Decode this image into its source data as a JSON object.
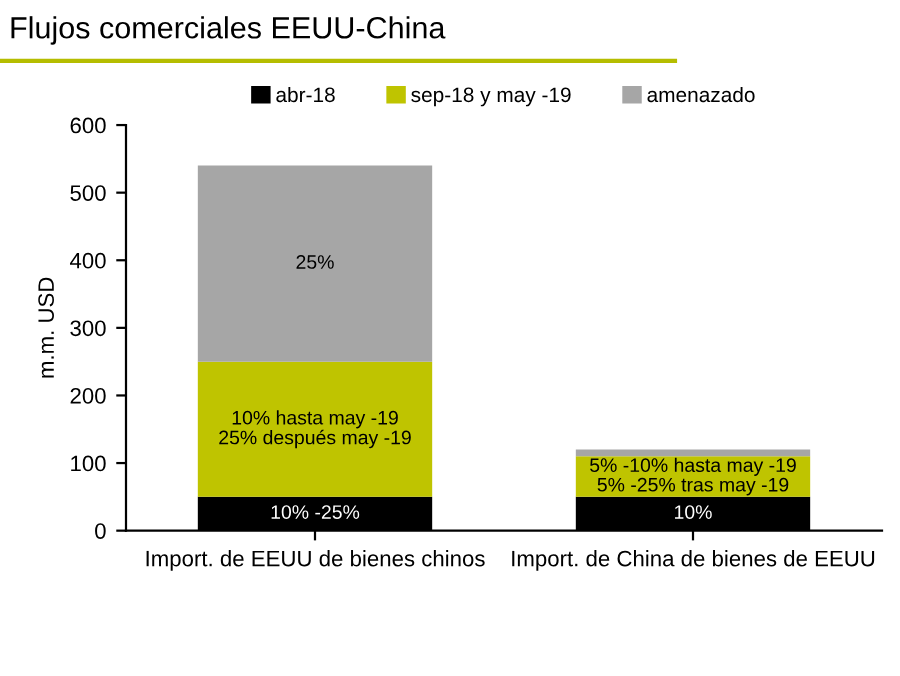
{
  "chart_data": {
    "type": "bar",
    "stacked": true,
    "title": "Flujos comerciales EEUU-China",
    "ylabel": "m.m. USD",
    "categories": [
      "Import. de EEUU de bienes chinos",
      "Import. de China de bienes de EEUU"
    ],
    "series": [
      {
        "name": "abr-18",
        "color": "#000000",
        "values": [
          50,
          50
        ]
      },
      {
        "name": "sep-18 y may -19",
        "color": "#bfc400",
        "values": [
          200,
          60
        ]
      },
      {
        "name": "amenazado",
        "color": "#a6a6a6",
        "values": [
          290,
          10
        ]
      }
    ],
    "annotations": [
      "10% -25%",
      "10%",
      "10% hasta may -19\n25% después may -19",
      "5% -10% hasta may -19\n5% -25% tras may -19",
      "25%"
    ],
    "ylim": [
      0,
      600
    ],
    "yticks": [
      0,
      100,
      200,
      300,
      400,
      500,
      600
    ],
    "grid": false,
    "legend": "top"
  }
}
